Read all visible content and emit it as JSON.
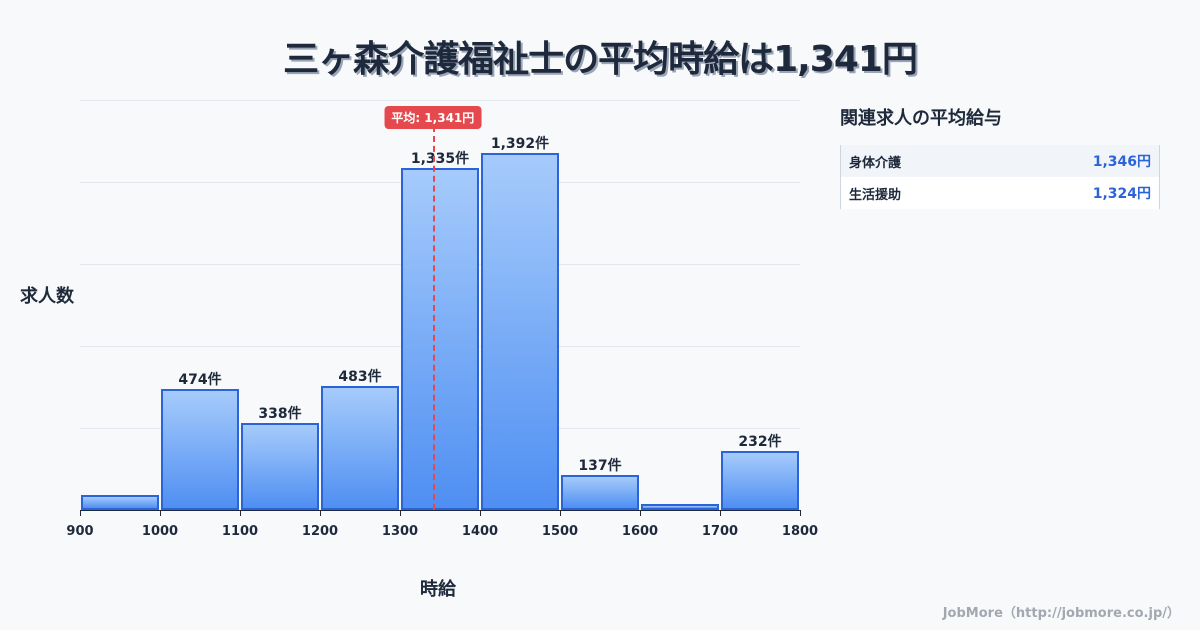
{
  "title": "三ヶ森介護福祉士の平均時給は1,341円",
  "chart_data": {
    "type": "bar",
    "title": "三ヶ森介護福祉士の平均時給は1,341円",
    "xlabel": "時給",
    "ylabel": "求人数",
    "categories": [
      "900-1000",
      "1000-1100",
      "1100-1200",
      "1200-1300",
      "1300-1400",
      "1400-1500",
      "1500-1600",
      "1600-1700",
      "1700-1800"
    ],
    "x_ticks": [
      "900",
      "1000",
      "1100",
      "1200",
      "1300",
      "1400",
      "1500",
      "1600",
      "1700",
      "1800"
    ],
    "values": [
      60,
      474,
      338,
      483,
      1335,
      1392,
      137,
      24,
      232
    ],
    "labels": [
      "",
      "474件",
      "338件",
      "483件",
      "1,335件",
      "1,392件",
      "137件",
      "",
      "232件"
    ],
    "ylim": [
      0,
      1600
    ],
    "grid": true,
    "mean": 1341,
    "mean_label": "平均: 1,341円",
    "colors": {
      "bar_border": "#2b63d9",
      "bar_top": "#a6cbfb",
      "bar_bottom": "#4f8ff2",
      "mean": "#e5484d"
    }
  },
  "side": {
    "title": "関連求人の平均給与",
    "rows": [
      {
        "name": "身体介護",
        "value": "1,346円"
      },
      {
        "name": "生活援助",
        "value": "1,324円"
      }
    ]
  },
  "footer": "JobMore（http://jobmore.co.jp/）"
}
